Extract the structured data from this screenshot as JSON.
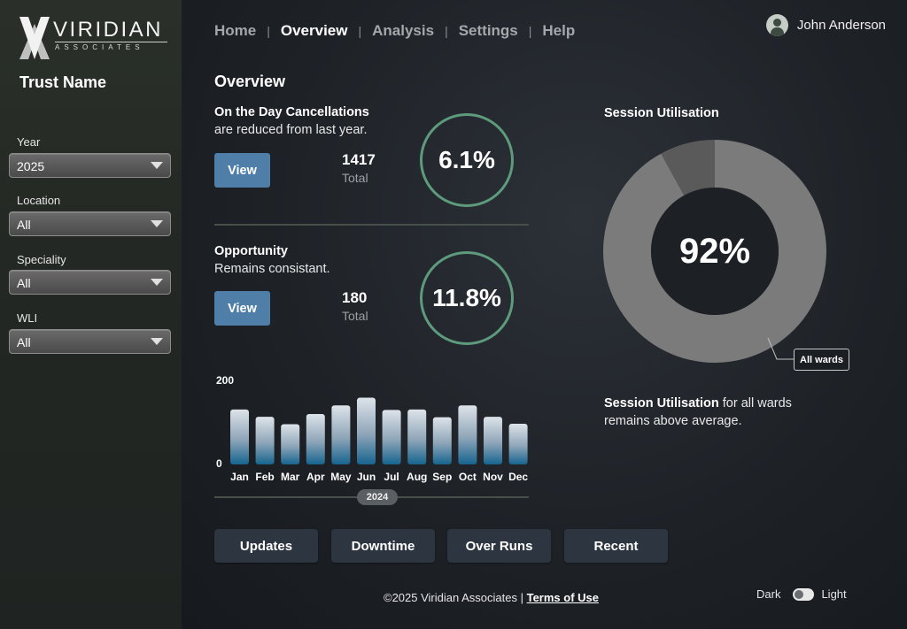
{
  "brand": {
    "name": "VIRIDIAN",
    "sub": "ASSOCIATES"
  },
  "sidebar": {
    "trust_name": "Trust Name",
    "filters": [
      {
        "label": "Year",
        "value": "2025"
      },
      {
        "label": "Location",
        "value": "All"
      },
      {
        "label": "Speciality",
        "value": "All"
      },
      {
        "label": "WLI",
        "value": "All"
      }
    ]
  },
  "nav": {
    "items": [
      "Home",
      "Overview",
      "Analysis",
      "Settings",
      "Help"
    ],
    "active": "Overview",
    "separator": "|"
  },
  "user": {
    "name": "John Anderson",
    "icon": "user-avatar-icon"
  },
  "page": {
    "title": "Overview"
  },
  "cards": [
    {
      "title": "On the Day Cancellations",
      "subtitle": "are reduced from last year.",
      "button": "View",
      "total": "1417",
      "total_label": "Total",
      "percent": "6.1%"
    },
    {
      "title": "Opportunity",
      "subtitle": "Remains consistant.",
      "button": "View",
      "total": "180",
      "total_label": "Total",
      "percent": "11.8%"
    }
  ],
  "chart_data": {
    "type": "bar",
    "categories": [
      "Jan",
      "Feb",
      "Mar",
      "Apr",
      "May",
      "Jun",
      "Jul",
      "Aug",
      "Sep",
      "Oct",
      "Nov",
      "Dec"
    ],
    "values": [
      135,
      117,
      99,
      124,
      145,
      164,
      134,
      135,
      116,
      145,
      117,
      100
    ],
    "ylim": [
      0,
      200
    ],
    "yticks": [
      "200",
      "0"
    ],
    "year": "2024",
    "grid": false
  },
  "bottom_buttons": [
    "Updates",
    "Downtime",
    "Over Runs",
    "Recent"
  ],
  "session": {
    "title": "Session Utilisation",
    "value": "92%",
    "percent": 92,
    "callout": "All wards",
    "caption_bold": "Session Utilisation",
    "caption_rest": " for all wards remains above average."
  },
  "footer": {
    "copyright": "©2025 Viridian Associates | ",
    "terms": "Terms of Use"
  },
  "theme": {
    "dark_label": "Dark",
    "light_label": "Light"
  },
  "colors": {
    "accent_ring": "#5e9a7c",
    "button_blue": "#4f7fa8",
    "bar_top": "#d6dde4",
    "bar_bottom": "#1f6a96",
    "donut_main": "#7b7b7b",
    "donut_gap": "#5a5a5a"
  }
}
